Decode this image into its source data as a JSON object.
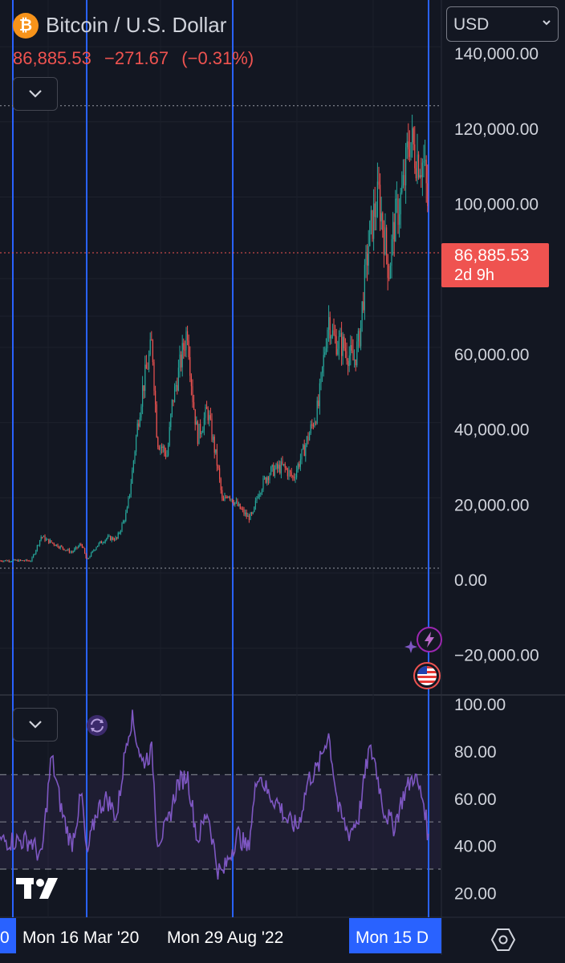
{
  "header": {
    "symbol_icon": "bitcoin-icon",
    "title": "Bitcoin / U.S. Dollar",
    "last_price": "86,885.53",
    "change": "−271.67",
    "change_pct": "(−0.31%)"
  },
  "currency": {
    "value": "USD",
    "icon": "chevron-down-icon"
  },
  "price_badge": {
    "price": "86,885.53",
    "countdown": "2d 9h"
  },
  "time_axis": {
    "labels": [
      "0",
      "Mon 16 Mar '20",
      "Mon 29 Aug '22",
      "Mon 15 D"
    ]
  },
  "colors": {
    "background": "#131722",
    "up": "#26a69a",
    "down": "#ef5350",
    "rsi": "#7e57c2",
    "marker_lines": "#2962ff",
    "badge": "#ef5350"
  },
  "icons": {
    "collapse": "chevron-down-icon",
    "settings": "hexagon-settings-icon",
    "logo": "tradingview-logo",
    "events": [
      "lightning-event-icon",
      "us-flag-event-icon"
    ],
    "indicator_status": "refresh-icon"
  },
  "chart_data": [
    {
      "type": "candlestick",
      "title": "Bitcoin / U.S. Dollar",
      "series": [
        {
          "name": "BTCUSD",
          "x": [
            "2019-04",
            "2019-06",
            "2019-07",
            "2019-10",
            "2019-12",
            "2020-02",
            "2020-03",
            "2020-05",
            "2020-07",
            "2020-09",
            "2020-11",
            "2020-12",
            "2021-01",
            "2021-02",
            "2021-04",
            "2021-05",
            "2021-07",
            "2021-08",
            "2021-10",
            "2021-11",
            "2021-12",
            "2022-01",
            "2022-03",
            "2022-05",
            "2022-06",
            "2022-07",
            "2022-09",
            "2022-11",
            "2022-12",
            "2023-01",
            "2023-03",
            "2023-04",
            "2023-06",
            "2023-08",
            "2023-10",
            "2023-11",
            "2024-01",
            "2024-03",
            "2024-04",
            "2024-06",
            "2024-08",
            "2024-09",
            "2024-11",
            "2024-12",
            "2025-01",
            "2025-03",
            "2025-04",
            "2025-06",
            "2025-07",
            "2025-08",
            "2025-10",
            "2025-11",
            "2025-12"
          ],
          "values": [
            5000,
            11500,
            10500,
            8500,
            7200,
            9500,
            5000,
            9000,
            11000,
            10800,
            18000,
            28000,
            40000,
            50000,
            63000,
            37000,
            33000,
            47000,
            60000,
            67000,
            49000,
            38000,
            45000,
            30000,
            20000,
            23000,
            19500,
            16500,
            17000,
            23000,
            28000,
            29000,
            30000,
            27000,
            34000,
            38000,
            46000,
            70000,
            64000,
            62000,
            58000,
            63000,
            90000,
            97000,
            102000,
            82000,
            94000,
            105000,
            118000,
            114000,
            110000,
            95000,
            86885.53
          ]
        }
      ],
      "ylim": [
        -25000,
        145000
      ],
      "y_ticks": [
        "140,000.00",
        "120,000.00",
        "100,000.00",
        "60,000.00",
        "40,000.00",
        "20,000.00",
        "0.00",
        "−20,000.00"
      ],
      "reference_lines": [
        126000,
        86885.53,
        3000
      ],
      "grid": true
    },
    {
      "type": "line",
      "title": "",
      "series": [
        {
          "name": "",
          "x": [
            "2019-04",
            "2019-06",
            "2019-08",
            "2019-10",
            "2019-12",
            "2020-02",
            "2020-03",
            "2020-05",
            "2020-07",
            "2020-09",
            "2020-11",
            "2020-12",
            "2021-02",
            "2021-04",
            "2021-05",
            "2021-07",
            "2021-09",
            "2021-11",
            "2022-01",
            "2022-03",
            "2022-05",
            "2022-06",
            "2022-09",
            "2022-11",
            "2023-01",
            "2023-03",
            "2023-05",
            "2023-07",
            "2023-09",
            "2023-11",
            "2024-01",
            "2024-03",
            "2024-05",
            "2024-07",
            "2024-09",
            "2024-11",
            "2024-12",
            "2025-02",
            "2025-04",
            "2025-06",
            "2025-08",
            "2025-10",
            "2025-11",
            "2025-12"
          ],
          "values": [
            42,
            34,
            78,
            55,
            40,
            62,
            35,
            55,
            60,
            52,
            86,
            94,
            75,
            80,
            42,
            48,
            66,
            70,
            42,
            55,
            30,
            28,
            45,
            38,
            72,
            62,
            58,
            50,
            48,
            68,
            73,
            88,
            55,
            45,
            52,
            80,
            78,
            55,
            48,
            62,
            70,
            58,
            40,
            36
          ]
        }
      ],
      "ylim": [
        15,
        102
      ],
      "y_ticks": [
        "100.00",
        "80.00",
        "60.00",
        "40.00",
        "20.00"
      ],
      "reference_lines": [
        70,
        50,
        30
      ]
    }
  ]
}
